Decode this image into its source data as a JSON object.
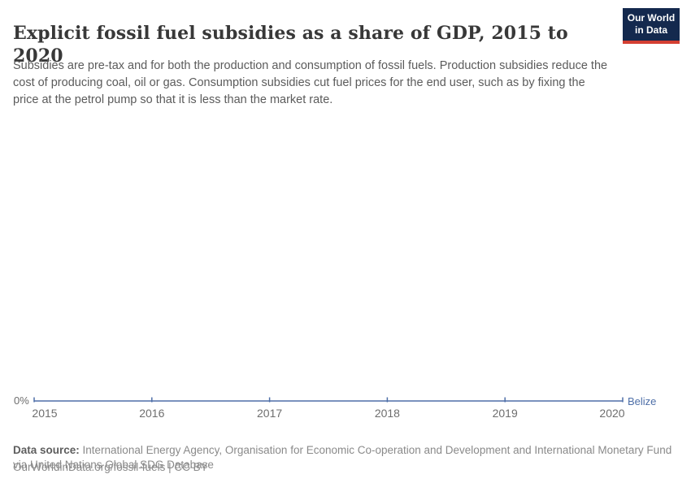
{
  "header": {
    "title": "Explicit fossil fuel subsidies as a share of GDP, 2015 to 2020",
    "subtitle": "Subsidies are pre-tax and for both the production and consumption of fossil fuels. Production subsidies reduce the cost of producing coal, oil or gas. Consumption subsidies cut fuel prices for the end user, such as by fixing the price at the petrol pump so that it is less than the market rate.",
    "logo": {
      "line1": "Our World",
      "line2": "in Data",
      "bg_color": "#14294e",
      "accent_color": "#d43f32"
    }
  },
  "chart_data": {
    "type": "line",
    "title": "Explicit fossil fuel subsidies as a share of GDP, 2015 to 2020",
    "x": [
      "2015",
      "2016",
      "2017",
      "2018",
      "2019",
      "2020"
    ],
    "series": [
      {
        "name": "Belize",
        "values": [
          0,
          0,
          0,
          0,
          0,
          0
        ],
        "color": "#4e6fa8"
      }
    ],
    "xlabel": "",
    "ylabel": "",
    "ytick_labels": [
      "0%"
    ],
    "ylim": [
      0,
      0
    ],
    "grid": false,
    "legend_position": "end-of-line",
    "marker_style": "vertical-tick"
  },
  "footer": {
    "datasource_label": "Data source:",
    "datasource_text": " International Energy Agency, Organisation for Economic Co-operation and Development and International Monetary Fund via United Nations Global SDG Database",
    "origin_url": "OurWorldinData.org/fossil-fuels | CC BY"
  }
}
